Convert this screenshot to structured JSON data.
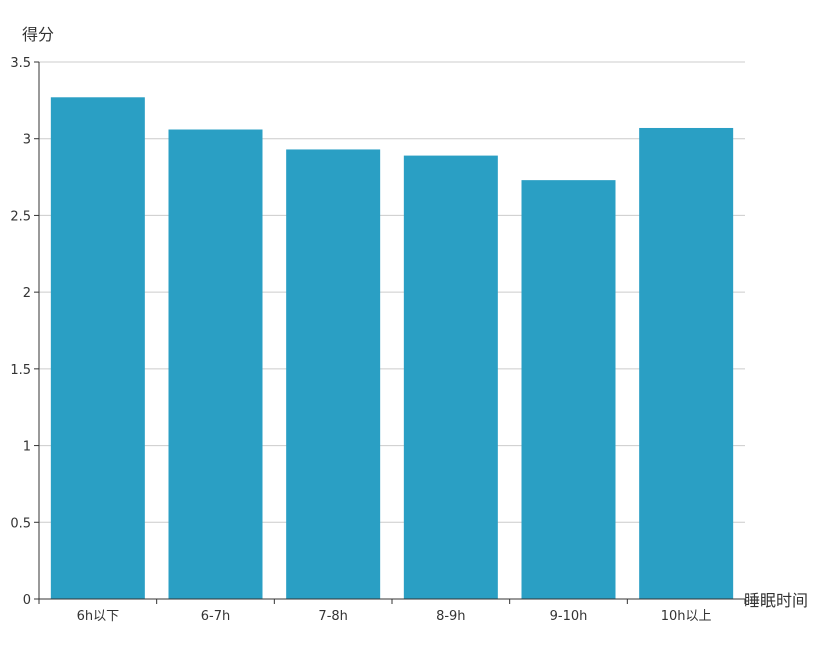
{
  "chart_data": {
    "type": "bar",
    "categories": [
      "6h以下",
      "6-7h",
      "7-8h",
      "8-9h",
      "9-10h",
      "10h以上"
    ],
    "values": [
      3.27,
      3.06,
      2.93,
      2.89,
      2.73,
      3.07
    ],
    "xlabel": "睡眠时间",
    "ylabel": "得分",
    "ylim": [
      0,
      3.5
    ],
    "yticks": [
      "0",
      "0.5",
      "1",
      "1.5",
      "2",
      "2.5",
      "3",
      "3.5"
    ],
    "grid": true,
    "bar_color": "#2a9fc4",
    "axis_color": "#333333",
    "grid_color": "#cccccc"
  }
}
